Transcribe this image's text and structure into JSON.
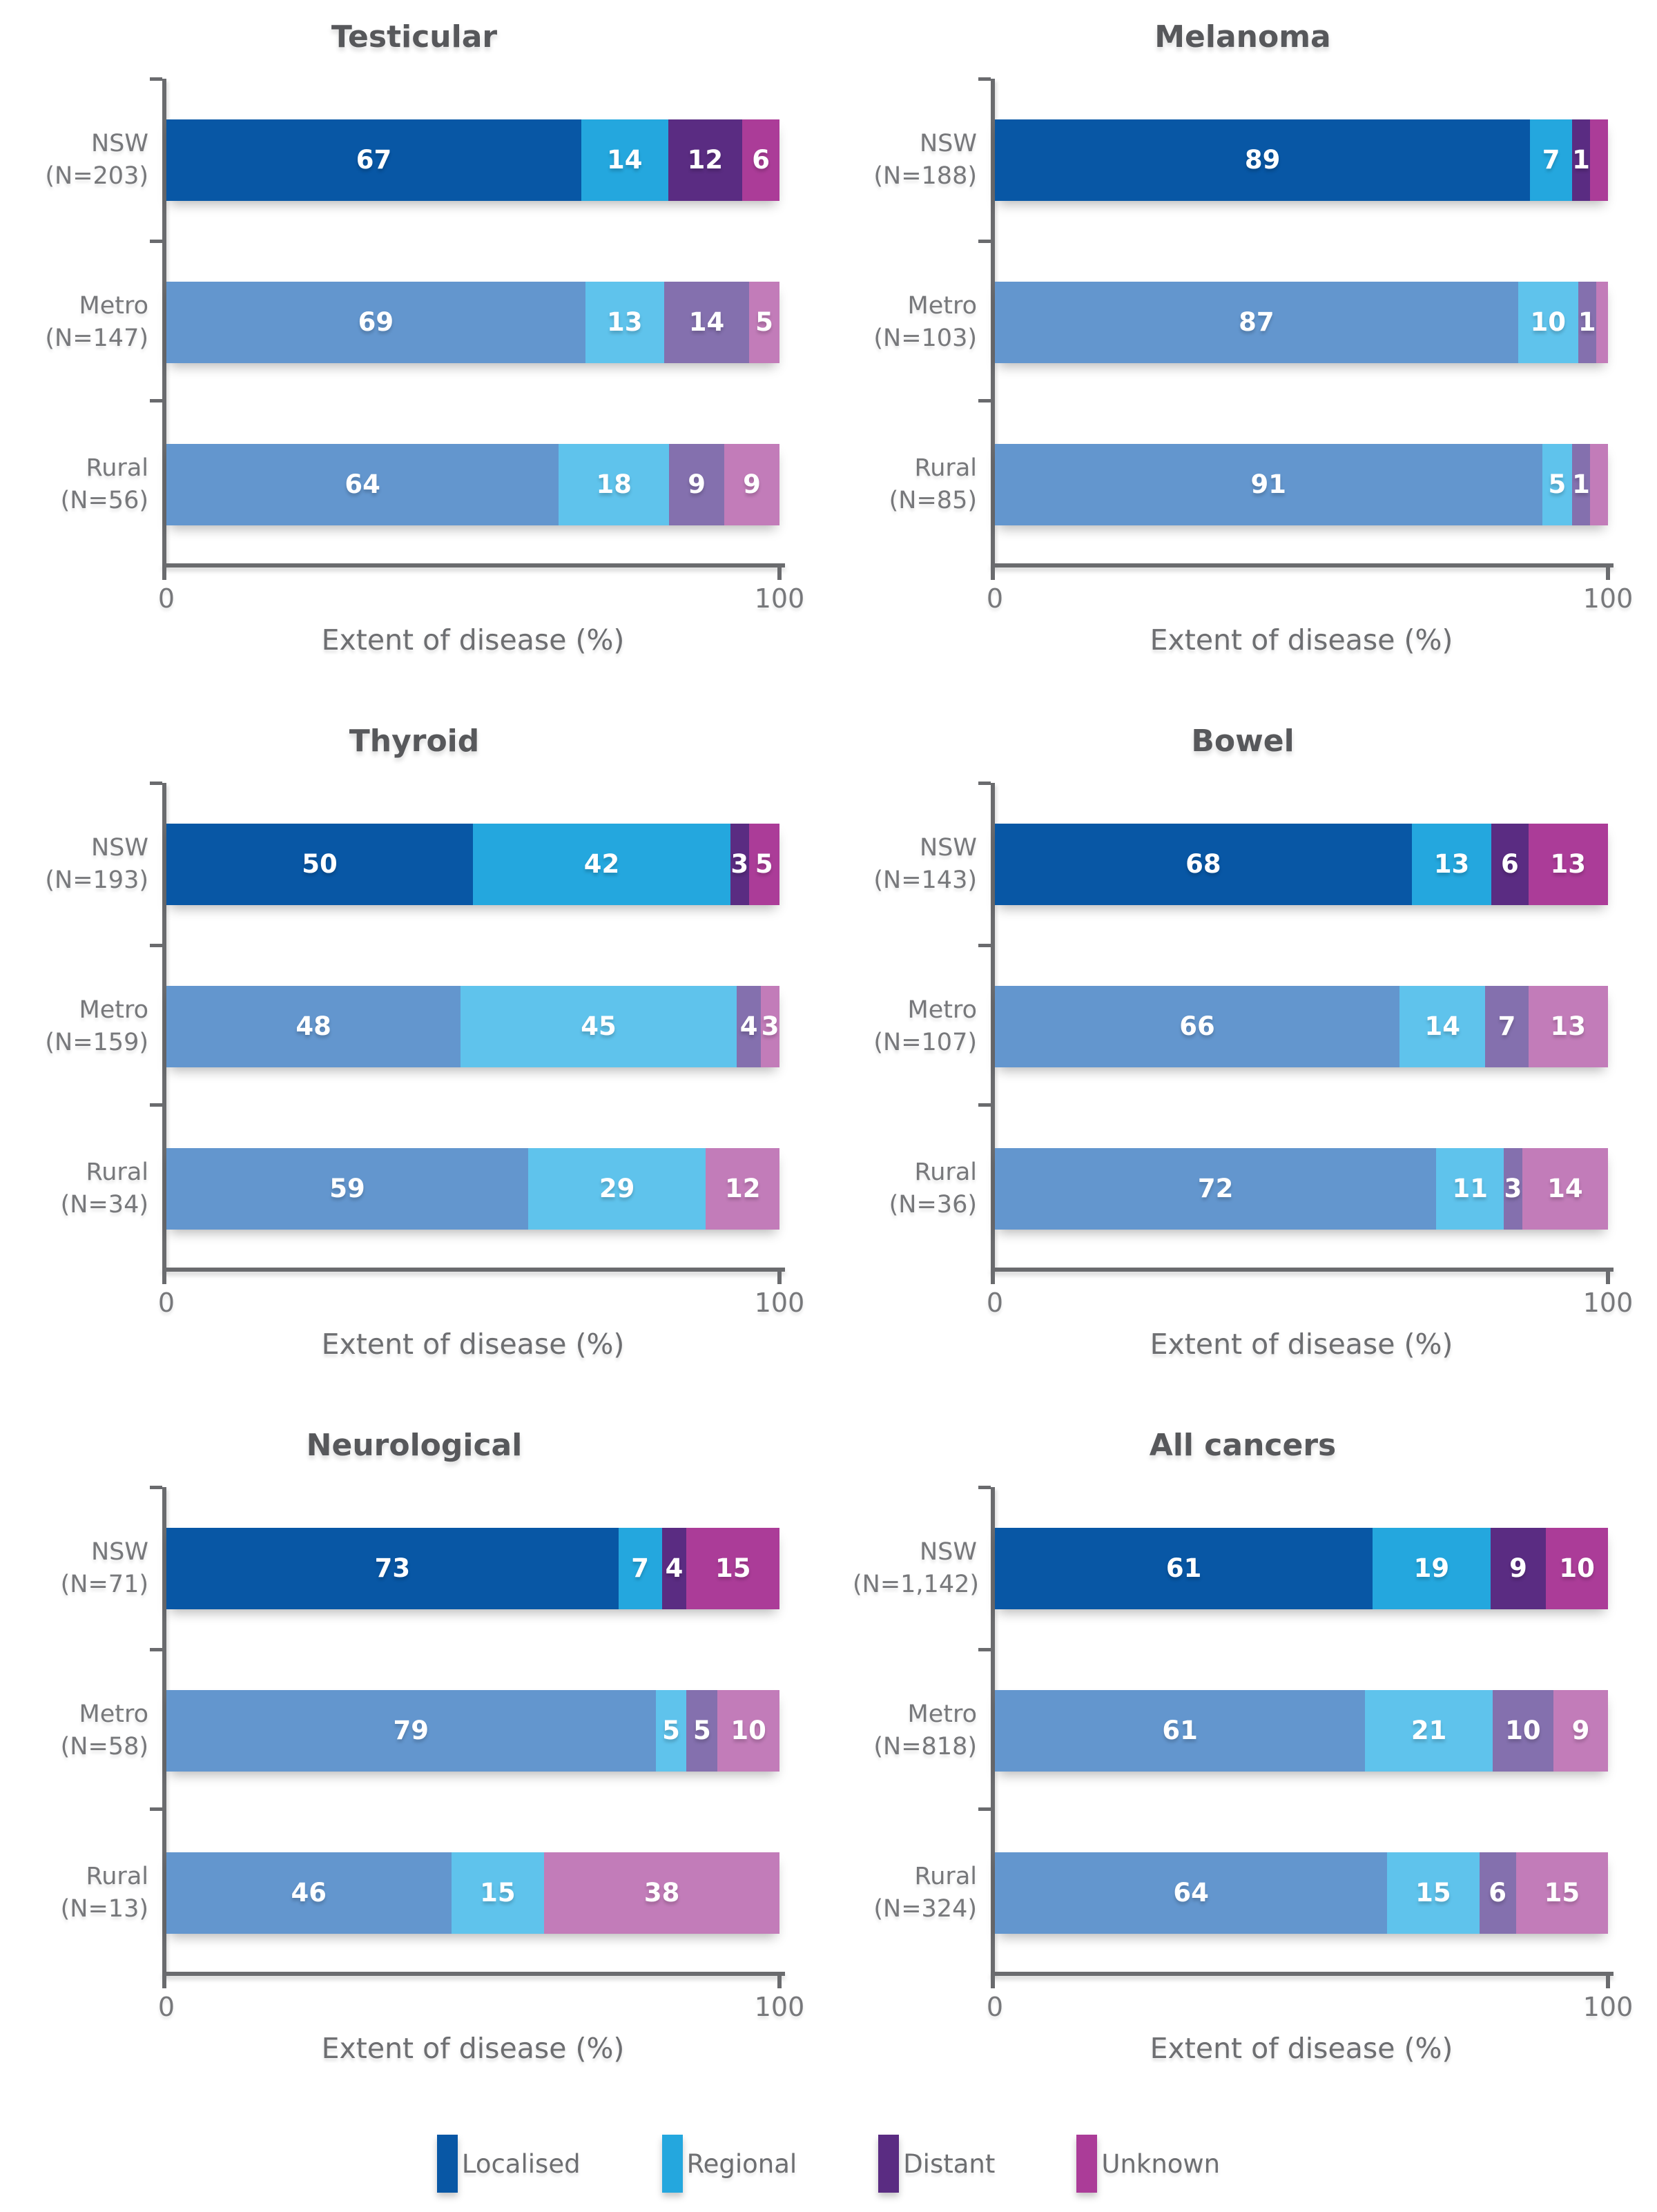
{
  "colors": {
    "nsw": {
      "localised": "#0857A5",
      "regional": "#24A7DE",
      "distant": "#5A2C82",
      "unknown": "#AB3C98"
    },
    "muted": {
      "localised": "#6396CE",
      "regional": "#5FC3EC",
      "distant": "#8470AE",
      "unknown": "#C27CB9"
    },
    "axis_line": "#6A6B6E",
    "title_text": "#57585B",
    "axis_text": "#77787B"
  },
  "axis": {
    "min_label": "0",
    "max_label": "100",
    "title": "Extent of disease (%)"
  },
  "legend": [
    {
      "label": "Localised",
      "category": "localised",
      "color": "#0857A5"
    },
    {
      "label": "Regional",
      "category": "regional",
      "color": "#24A7DE"
    },
    {
      "label": "Distant",
      "category": "distant",
      "color": "#5A2C82"
    },
    {
      "label": "Unknown",
      "category": "unknown",
      "color": "#AB3C98"
    }
  ],
  "chart_data": {
    "type": "bar",
    "note": "six horizontal stacked bar panels, values are percentages of the 0-100 axis; see charts array"
  },
  "charts": [
    {
      "title": "Testicular",
      "rows": [
        {
          "label": "NSW",
          "n": "(N=203)",
          "style": "nsw",
          "segments": [
            {
              "category": "localised",
              "value": 67,
              "label": "67"
            },
            {
              "category": "regional",
              "value": 14,
              "label": "14"
            },
            {
              "category": "distant",
              "value": 12,
              "label": "12"
            },
            {
              "category": "unknown",
              "value": 6,
              "label": "6"
            }
          ]
        },
        {
          "label": "Metro",
          "n": "(N=147)",
          "style": "muted",
          "segments": [
            {
              "category": "localised",
              "value": 69,
              "label": "69"
            },
            {
              "category": "regional",
              "value": 13,
              "label": "13"
            },
            {
              "category": "distant",
              "value": 14,
              "label": "14"
            },
            {
              "category": "unknown",
              "value": 5,
              "label": "5"
            }
          ]
        },
        {
          "label": "Rural",
          "n": "(N=56)",
          "style": "muted",
          "segments": [
            {
              "category": "localised",
              "value": 64,
              "label": "64"
            },
            {
              "category": "regional",
              "value": 18,
              "label": "18"
            },
            {
              "category": "distant",
              "value": 9,
              "label": "9"
            },
            {
              "category": "unknown",
              "value": 9,
              "label": "9"
            }
          ]
        }
      ]
    },
    {
      "title": "Melanoma",
      "rows": [
        {
          "label": "NSW",
          "n": "(N=188)",
          "style": "nsw",
          "segments": [
            {
              "category": "localised",
              "value": 89,
              "label": "89"
            },
            {
              "category": "regional",
              "value": 7,
              "label": "7"
            },
            {
              "category": "distant",
              "value": 1,
              "label": "1"
            },
            {
              "category": "unknown",
              "value": 3,
              "label": ""
            }
          ]
        },
        {
          "label": "Metro",
          "n": "(N=103)",
          "style": "muted",
          "segments": [
            {
              "category": "localised",
              "value": 87,
              "label": "87"
            },
            {
              "category": "regional",
              "value": 10,
              "label": "10"
            },
            {
              "category": "distant",
              "value": 1,
              "label": "1"
            },
            {
              "category": "unknown",
              "value": 2,
              "label": ""
            }
          ]
        },
        {
          "label": "Rural",
          "n": "(N=85)",
          "style": "muted",
          "segments": [
            {
              "category": "localised",
              "value": 91,
              "label": "91"
            },
            {
              "category": "regional",
              "value": 5,
              "label": "5"
            },
            {
              "category": "distant",
              "value": 1,
              "label": "1"
            },
            {
              "category": "unknown",
              "value": 3,
              "label": ""
            }
          ]
        }
      ]
    },
    {
      "title": "Thyroid",
      "rows": [
        {
          "label": "NSW",
          "n": "(N=193)",
          "style": "nsw",
          "segments": [
            {
              "category": "localised",
              "value": 50,
              "label": "50"
            },
            {
              "category": "regional",
              "value": 42,
              "label": "42"
            },
            {
              "category": "distant",
              "value": 3,
              "label": "3"
            },
            {
              "category": "unknown",
              "value": 5,
              "label": "5"
            }
          ]
        },
        {
          "label": "Metro",
          "n": "(N=159)",
          "style": "muted",
          "segments": [
            {
              "category": "localised",
              "value": 48,
              "label": "48"
            },
            {
              "category": "regional",
              "value": 45,
              "label": "45"
            },
            {
              "category": "distant",
              "value": 4,
              "label": "4"
            },
            {
              "category": "unknown",
              "value": 3,
              "label": "3"
            }
          ]
        },
        {
          "label": "Rural",
          "n": "(N=34)",
          "style": "muted",
          "segments": [
            {
              "category": "localised",
              "value": 59,
              "label": "59"
            },
            {
              "category": "regional",
              "value": 29,
              "label": "29"
            },
            {
              "category": "unknown",
              "value": 12,
              "label": "12"
            }
          ]
        }
      ]
    },
    {
      "title": "Bowel",
      "rows": [
        {
          "label": "NSW",
          "n": "(N=143)",
          "style": "nsw",
          "segments": [
            {
              "category": "localised",
              "value": 68,
              "label": "68"
            },
            {
              "category": "regional",
              "value": 13,
              "label": "13"
            },
            {
              "category": "distant",
              "value": 6,
              "label": "6"
            },
            {
              "category": "unknown",
              "value": 13,
              "label": "13"
            }
          ]
        },
        {
          "label": "Metro",
          "n": "(N=107)",
          "style": "muted",
          "segments": [
            {
              "category": "localised",
              "value": 66,
              "label": "66"
            },
            {
              "category": "regional",
              "value": 14,
              "label": "14"
            },
            {
              "category": "distant",
              "value": 7,
              "label": "7"
            },
            {
              "category": "unknown",
              "value": 13,
              "label": "13"
            }
          ]
        },
        {
          "label": "Rural",
          "n": "(N=36)",
          "style": "muted",
          "segments": [
            {
              "category": "localised",
              "value": 72,
              "label": "72"
            },
            {
              "category": "regional",
              "value": 11,
              "label": "11"
            },
            {
              "category": "distant",
              "value": 3,
              "label": "3"
            },
            {
              "category": "unknown",
              "value": 14,
              "label": "14"
            }
          ]
        }
      ]
    },
    {
      "title": "Neurological",
      "rows": [
        {
          "label": "NSW",
          "n": "(N=71)",
          "style": "nsw",
          "segments": [
            {
              "category": "localised",
              "value": 73,
              "label": "73"
            },
            {
              "category": "regional",
              "value": 7,
              "label": "7"
            },
            {
              "category": "distant",
              "value": 4,
              "label": "4"
            },
            {
              "category": "unknown",
              "value": 15,
              "label": "15"
            }
          ]
        },
        {
          "label": "Metro",
          "n": "(N=58)",
          "style": "muted",
          "segments": [
            {
              "category": "localised",
              "value": 79,
              "label": "79"
            },
            {
              "category": "regional",
              "value": 5,
              "label": "5"
            },
            {
              "category": "distant",
              "value": 5,
              "label": "5"
            },
            {
              "category": "unknown",
              "value": 10,
              "label": "10"
            }
          ]
        },
        {
          "label": "Rural",
          "n": "(N=13)",
          "style": "muted",
          "segments": [
            {
              "category": "localised",
              "value": 46,
              "label": "46"
            },
            {
              "category": "regional",
              "value": 15,
              "label": "15"
            },
            {
              "category": "unknown",
              "value": 38,
              "label": "38"
            }
          ]
        }
      ]
    },
    {
      "title": "All cancers",
      "rows": [
        {
          "label": "NSW",
          "n": "(N=1,142)",
          "style": "nsw",
          "segments": [
            {
              "category": "localised",
              "value": 61,
              "label": "61"
            },
            {
              "category": "regional",
              "value": 19,
              "label": "19"
            },
            {
              "category": "distant",
              "value": 9,
              "label": "9"
            },
            {
              "category": "unknown",
              "value": 10,
              "label": "10"
            }
          ]
        },
        {
          "label": "Metro",
          "n": "(N=818)",
          "style": "muted",
          "segments": [
            {
              "category": "localised",
              "value": 61,
              "label": "61"
            },
            {
              "category": "regional",
              "value": 21,
              "label": "21"
            },
            {
              "category": "distant",
              "value": 10,
              "label": "10"
            },
            {
              "category": "unknown",
              "value": 9,
              "label": "9"
            }
          ]
        },
        {
          "label": "Rural",
          "n": "(N=324)",
          "style": "muted",
          "segments": [
            {
              "category": "localised",
              "value": 64,
              "label": "64"
            },
            {
              "category": "regional",
              "value": 15,
              "label": "15"
            },
            {
              "category": "distant",
              "value": 6,
              "label": "6"
            },
            {
              "category": "unknown",
              "value": 15,
              "label": "15"
            }
          ]
        }
      ]
    }
  ]
}
